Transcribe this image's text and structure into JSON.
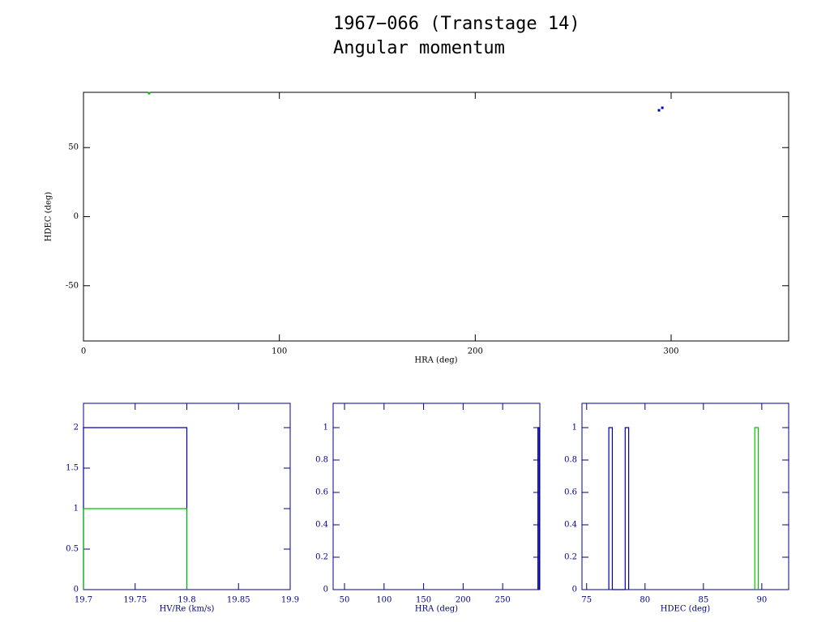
{
  "chart_data": [
    {
      "type": "scatter",
      "title": "1967−066 (Transtage 14)",
      "subtitle": "Angular momentum",
      "x_label": "HRA (deg)",
      "y_label": "HDEC (deg)",
      "axis_color": "#000000",
      "xlim": [
        0,
        360
      ],
      "ylim": [
        -90,
        90
      ],
      "xticks": [
        0,
        100,
        200,
        300
      ],
      "yticks": [
        -50,
        0,
        50
      ],
      "series": [
        {
          "color": "#00c000",
          "x": [
            33.5
          ],
          "values": [
            89.4
          ]
        },
        {
          "color": "#0000b0",
          "x": [
            293.8,
            295.5
          ],
          "values": [
            77,
            78.8
          ]
        }
      ]
    },
    {
      "type": "histogram",
      "x_label": "HV/Re (km/s)",
      "axis_color": "#00008b",
      "xlim": [
        19.7,
        19.9
      ],
      "ylim": [
        0,
        2.3
      ],
      "xticks": [
        19.7,
        19.75,
        19.8,
        19.85,
        19.9
      ],
      "yticks": [
        0,
        0.5,
        1,
        1.5,
        2
      ],
      "series": [
        {
          "color": "#0000b0",
          "bins": [
            19.7,
            19.8
          ],
          "values": [
            2
          ]
        },
        {
          "color": "#00c000",
          "bins": [
            19.7,
            19.8
          ],
          "values": [
            1
          ]
        }
      ]
    },
    {
      "type": "histogram",
      "x_label": "HRA (deg)",
      "axis_color": "#00008b",
      "xlim": [
        35.6,
        297
      ],
      "ylim": [
        0,
        1.15
      ],
      "xticks": [
        50,
        100,
        150,
        200,
        250
      ],
      "yticks": [
        0,
        0.2,
        0.4,
        0.6,
        0.8,
        1
      ],
      "series": [
        {
          "color": "#0000b0",
          "bins": [
            294.6,
            296
          ],
          "values": [
            1
          ]
        }
      ]
    },
    {
      "type": "histogram",
      "x_label": "HDEC (deg)",
      "axis_color": "#00008b",
      "xlim": [
        74.6,
        92.3
      ],
      "ylim": [
        0,
        1.15
      ],
      "xticks": [
        75,
        80,
        85,
        90
      ],
      "yticks": [
        0,
        0.2,
        0.4,
        0.6,
        0.8,
        1
      ],
      "series": [
        {
          "color": "#0000b0",
          "bins": [
            76.9,
            77.2,
            78.3,
            78.6
          ],
          "values": [
            1,
            0,
            1
          ]
        },
        {
          "color": "#00c000",
          "bins": [
            89.4,
            89.7
          ],
          "values": [
            1
          ]
        }
      ]
    }
  ]
}
